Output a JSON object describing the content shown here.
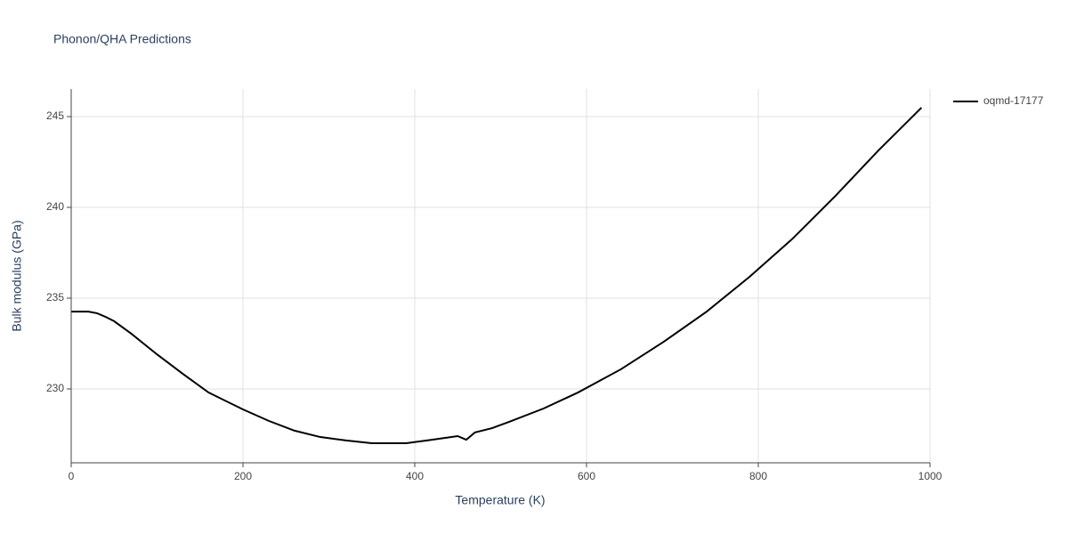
{
  "chart_data": {
    "type": "line",
    "title": "Phonon/QHA Predictions",
    "x_label": "Temperature (K)",
    "y_label": "Bulk modulus (GPa)",
    "x": [
      0,
      20,
      30,
      40,
      50,
      70,
      100,
      130,
      160,
      200,
      230,
      260,
      290,
      320,
      350,
      390,
      420,
      450,
      460,
      470,
      490,
      510,
      550,
      590,
      640,
      690,
      740,
      790,
      840,
      890,
      940,
      990
    ],
    "series": [
      {
        "name": "oqmd-17177",
        "color": "#000000",
        "values": [
          234.26,
          234.26,
          234.17,
          233.97,
          233.73,
          233.04,
          231.9,
          230.83,
          229.8,
          228.87,
          228.24,
          227.7,
          227.35,
          227.16,
          227.01,
          227.01,
          227.2,
          227.4,
          227.2,
          227.6,
          227.84,
          228.19,
          228.92,
          229.8,
          231.08,
          232.6,
          234.26,
          236.18,
          238.28,
          240.64,
          243.14,
          245.49
        ]
      }
    ],
    "xlim": [
      0,
      1000
    ],
    "xticks": [
      0,
      200,
      400,
      600,
      800,
      1000
    ],
    "ylim": [
      225.93,
      246.52
    ],
    "yticks": [
      230,
      235,
      240,
      245
    ],
    "grid": true,
    "legend": "right"
  }
}
